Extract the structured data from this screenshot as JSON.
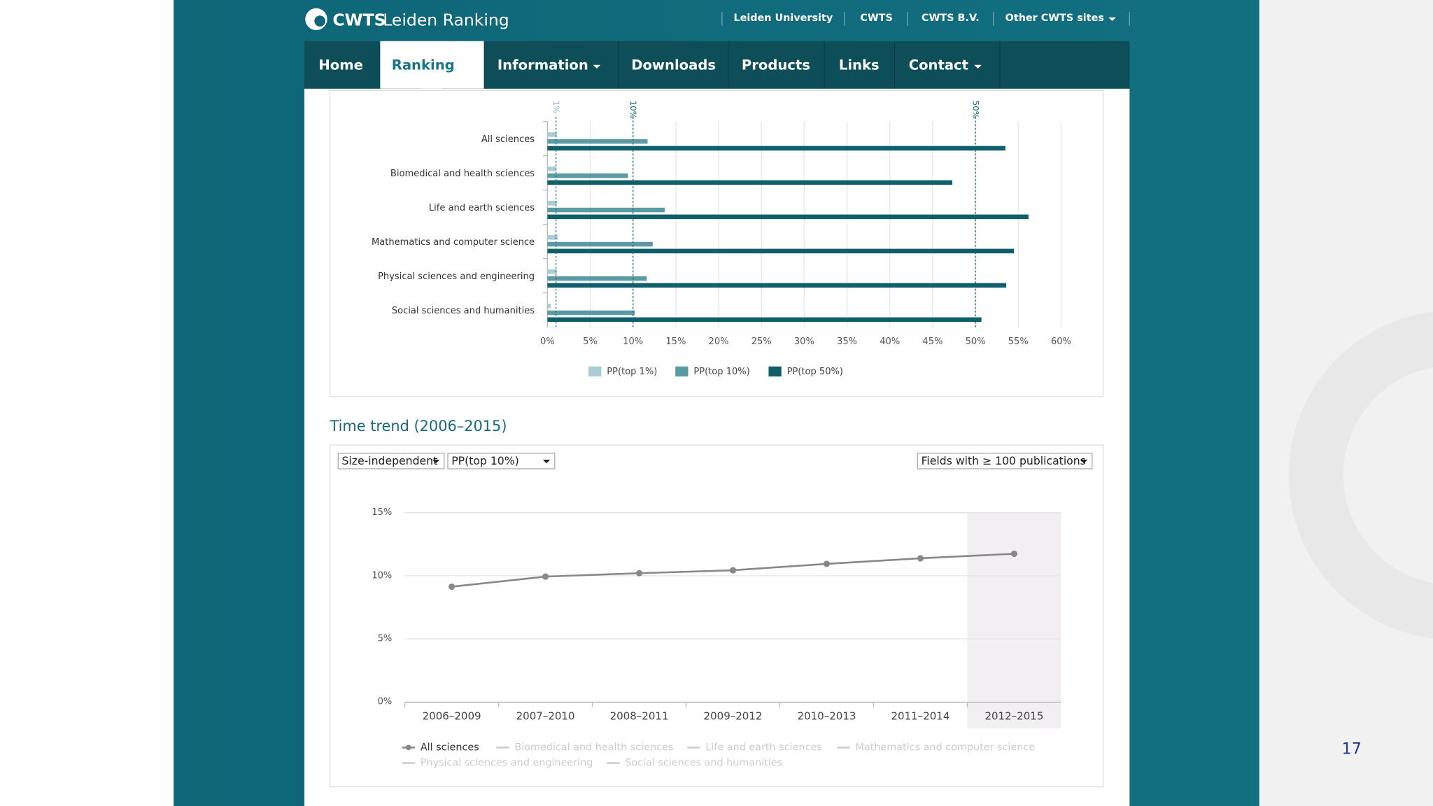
{
  "header": {
    "logo_bold": "CWTS",
    "logo_text": "Leiden Ranking",
    "links": [
      "Leiden University",
      "CWTS",
      "CWTS B.V.",
      "Other CWTS sites"
    ]
  },
  "nav": {
    "items": [
      "Home",
      "Ranking",
      "Information",
      "Downloads",
      "Products",
      "Links",
      "Contact"
    ],
    "active": "Ranking"
  },
  "section_title": "Time trend (2006–2015)",
  "controls": [
    "Size-independent",
    "PP(top 10%)",
    "Fields with ≥ 100 publications"
  ],
  "page_number": "17",
  "chart_data": [
    {
      "type": "bar",
      "orientation": "horizontal",
      "categories": [
        "All sciences",
        "Biomedical and health sciences",
        "Life and earth sciences",
        "Mathematics and computer science",
        "Physical sciences and engineering",
        "Social sciences and humanities"
      ],
      "series": [
        {
          "name": "PP(top 1%)",
          "color": "#a9cdd3",
          "values": [
            1.1,
            1.0,
            1.1,
            1.2,
            1.1,
            0.4
          ]
        },
        {
          "name": "PP(top 10%)",
          "color": "#5b9aa3",
          "values": [
            11.7,
            9.4,
            13.7,
            12.3,
            11.6,
            10.2
          ]
        },
        {
          "name": "PP(top 50%)",
          "color": "#0f5f6b",
          "values": [
            53.5,
            47.3,
            56.2,
            54.5,
            53.6,
            50.7
          ]
        }
      ],
      "xlim": [
        0,
        60
      ],
      "xticks": [
        {
          "value": 0,
          "label": "0%"
        },
        {
          "value": 5,
          "label": "5%"
        },
        {
          "value": 10,
          "label": "10%"
        },
        {
          "value": 15,
          "label": "15%"
        },
        {
          "value": 20,
          "label": "20%"
        },
        {
          "value": 25,
          "label": "25%"
        },
        {
          "value": 30,
          "label": "30%"
        },
        {
          "value": 35,
          "label": "35%"
        },
        {
          "value": 40,
          "label": "40%"
        },
        {
          "value": 45,
          "label": "45%"
        },
        {
          "value": 50,
          "label": "50%"
        },
        {
          "value": 55,
          "label": "55%"
        },
        {
          "value": 60,
          "label": "60%"
        }
      ],
      "reference_lines": [
        {
          "value": 1,
          "label": "1%"
        },
        {
          "value": 10,
          "label": "10%"
        },
        {
          "value": 50,
          "label": "50%"
        }
      ],
      "grid": true,
      "legend": "bottom"
    },
    {
      "type": "line",
      "categories": [
        "2006–2009",
        "2007–2010",
        "2008–2011",
        "2009–2012",
        "2010–2013",
        "2011–2014",
        "2012–2015"
      ],
      "series": [
        {
          "name": "All sciences",
          "color": "#888888",
          "values": [
            9.13,
            9.93,
            10.2,
            10.43,
            10.94,
            11.38,
            11.74
          ]
        }
      ],
      "inactive_series": [
        "Biomedical and health sciences",
        "Life and earth sciences",
        "Mathematics and computer science",
        "Physical sciences and engineering",
        "Social sciences and humanities"
      ],
      "ylim": [
        0,
        15
      ],
      "yticks": [
        {
          "value": 0,
          "label": "0%"
        },
        {
          "value": 5,
          "label": "5%"
        },
        {
          "value": 10,
          "label": "10%"
        },
        {
          "value": 15,
          "label": "15%"
        }
      ],
      "grid": true,
      "legend": "bottom"
    }
  ]
}
